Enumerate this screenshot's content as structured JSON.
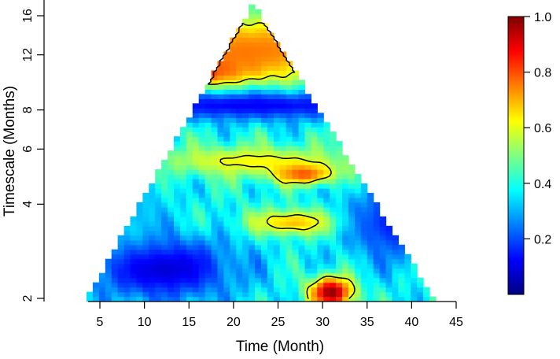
{
  "chart_data": {
    "type": "heatmap",
    "title": "",
    "xlabel": "Time (Month)",
    "ylabel": "Timescale (Months)",
    "xlim": [
      1.5,
      45
    ],
    "ylim_log2": [
      1,
      4.15
    ],
    "x_ticks": [
      5,
      10,
      15,
      20,
      25,
      30,
      35,
      40,
      45
    ],
    "y_ticks": [
      2,
      4,
      6,
      8,
      12,
      16
    ],
    "y_scale": "log",
    "color_range": [
      0,
      1
    ],
    "colorbar_ticks": [
      0.2,
      0.4,
      0.6,
      0.8,
      1.0
    ],
    "colorbar_tick_labels": [
      "0.2",
      "0.4",
      "0.6",
      "0.8",
      "1.0"
    ],
    "colormap": [
      "#00007f",
      "#0000ff",
      "#007fff",
      "#00ffff",
      "#7fff7f",
      "#ffff00",
      "#ff7f00",
      "#ff0000",
      "#7f0000"
    ],
    "cone": {
      "apex": {
        "x": 22.2,
        "period": 17.6
      },
      "bottom_left": {
        "x": 3.5,
        "period": 2
      },
      "bottom_right": {
        "x": 42.5,
        "period": 2
      }
    },
    "field_features": [
      {
        "x": 22,
        "period": 12.5,
        "value": 0.75,
        "sx": 14,
        "sy": 0.28
      },
      {
        "x": 14,
        "period": 10.5,
        "value": 0.88,
        "sx": 5,
        "sy": 0.12
      },
      {
        "x": 22,
        "period": 8.3,
        "value": 0.12,
        "sx": 15,
        "sy": 0.12
      },
      {
        "x": 22,
        "period": 5.5,
        "value": 0.62,
        "sx": 8,
        "sy": 0.12
      },
      {
        "x": 28,
        "period": 5.0,
        "value": 0.8,
        "sx": 2.5,
        "sy": 0.08
      },
      {
        "x": 27,
        "period": 3.5,
        "value": 0.7,
        "sx": 4,
        "sy": 0.1
      },
      {
        "x": 31,
        "period": 2.1,
        "value": 1.0,
        "sx": 1.8,
        "sy": 0.12
      },
      {
        "x": 12,
        "period": 2.5,
        "value": 0.08,
        "sx": 6,
        "sy": 0.25
      },
      {
        "x": 38,
        "period": 3.5,
        "value": 0.15,
        "sx": 4,
        "sy": 0.3
      },
      {
        "x": 8,
        "period": 4.0,
        "value": 0.3,
        "sx": 3,
        "sy": 0.3
      }
    ],
    "contour_levels": [
      0.6
    ]
  }
}
